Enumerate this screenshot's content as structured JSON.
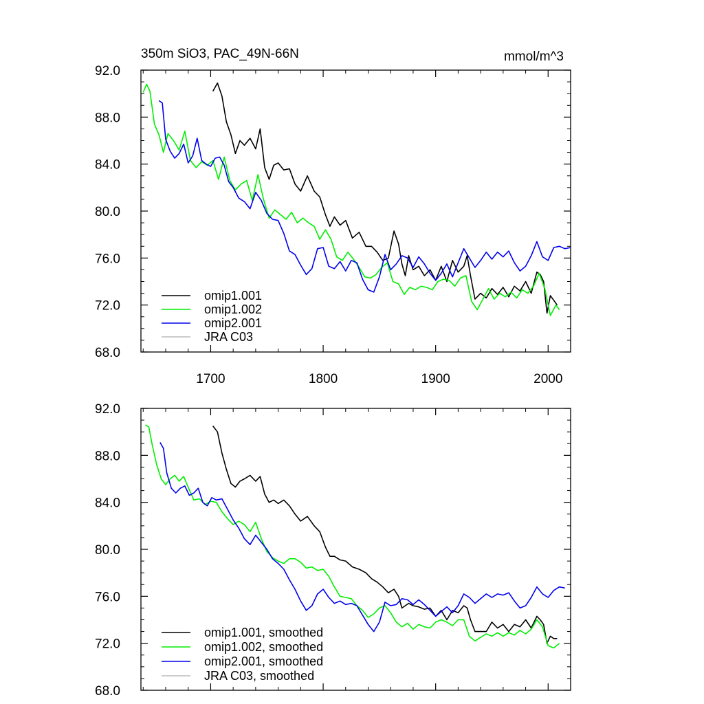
{
  "chart_data": [
    {
      "type": "line",
      "title": "350m SiO3, PAC_49N-66N",
      "units": "mmol/m^3",
      "xlim": [
        1638,
        2020
      ],
      "ylim": [
        68,
        92
      ],
      "xticks": [
        1700,
        1800,
        1900,
        2000
      ],
      "xtick_labels": [
        "1700",
        "1800",
        "1900",
        "2000"
      ],
      "yticks": [
        68,
        72,
        76,
        80,
        84,
        88,
        92
      ],
      "ytick_labels": [
        "68.0",
        "72.0",
        "76.0",
        "80.0",
        "84.0",
        "88.0",
        "92.0"
      ],
      "legend_position": "bottom-left",
      "series": [
        {
          "name": "omip1.001",
          "color": "#000000",
          "x": [
            1702,
            1706,
            1710,
            1714,
            1718,
            1722,
            1726,
            1730,
            1735,
            1740,
            1744,
            1748,
            1752,
            1756,
            1760,
            1765,
            1770,
            1775,
            1780,
            1786,
            1792,
            1797,
            1802,
            1806,
            1810,
            1815,
            1820,
            1826,
            1832,
            1838,
            1843,
            1848,
            1853,
            1858,
            1863,
            1867,
            1870,
            1873,
            1876,
            1880,
            1885,
            1890,
            1895,
            1900,
            1905,
            1910,
            1915,
            1920,
            1925,
            1928,
            1931,
            1935,
            1940,
            1945,
            1950,
            1955,
            1960,
            1965,
            1970,
            1975,
            1980,
            1985,
            1990,
            1993,
            1996,
            1999,
            2002,
            2005,
            2008
          ],
          "values": [
            90.2,
            90.9,
            89.8,
            87.6,
            86.5,
            84.9,
            86.0,
            85.6,
            86.2,
            85.3,
            87.0,
            83.7,
            82.7,
            83.9,
            84.1,
            83.5,
            83.6,
            82.3,
            81.7,
            83.0,
            81.7,
            81.2,
            79.7,
            78.7,
            79.5,
            78.8,
            79.2,
            77.7,
            78.2,
            77.0,
            77.0,
            76.5,
            75.8,
            76.0,
            78.3,
            77.2,
            75.5,
            74.5,
            76.2,
            75.0,
            75.3,
            74.5,
            75.0,
            74.1,
            75.3,
            74.0,
            75.8,
            74.8,
            75.3,
            76.2,
            74.5,
            72.5,
            73.0,
            72.6,
            73.4,
            72.9,
            73.5,
            72.7,
            73.6,
            73.2,
            74.0,
            73.0,
            74.8,
            74.6,
            74.0,
            71.3,
            72.8,
            72.4,
            72.0
          ]
        },
        {
          "name": "omip1.002",
          "color": "#00ee00",
          "x": [
            1640,
            1643,
            1646,
            1650,
            1654,
            1658,
            1662,
            1667,
            1672,
            1677,
            1682,
            1687,
            1692,
            1697,
            1702,
            1707,
            1712,
            1717,
            1722,
            1727,
            1732,
            1737,
            1742,
            1747,
            1752,
            1757,
            1762,
            1767,
            1772,
            1777,
            1782,
            1787,
            1792,
            1797,
            1802,
            1807,
            1812,
            1817,
            1822,
            1827,
            1832,
            1837,
            1842,
            1847,
            1852,
            1857,
            1862,
            1867,
            1872,
            1877,
            1882,
            1887,
            1892,
            1897,
            1902,
            1907,
            1912,
            1917,
            1922,
            1927,
            1932,
            1937,
            1942,
            1947,
            1952,
            1957,
            1962,
            1967,
            1972,
            1977,
            1982,
            1987,
            1992,
            1997,
            2002,
            2007,
            2010
          ],
          "values": [
            90.1,
            90.8,
            90.2,
            87.4,
            86.5,
            85.0,
            86.6,
            86.0,
            85.2,
            86.8,
            84.3,
            83.7,
            84.2,
            83.9,
            84.3,
            82.7,
            84.6,
            82.6,
            81.8,
            82.3,
            82.6,
            80.9,
            83.1,
            81.0,
            79.4,
            80.1,
            79.7,
            79.3,
            79.9,
            79.0,
            79.4,
            79.0,
            78.7,
            77.6,
            78.4,
            77.6,
            76.1,
            75.8,
            76.5,
            75.9,
            75.2,
            74.4,
            74.3,
            74.6,
            75.2,
            75.6,
            74.0,
            73.8,
            72.9,
            73.5,
            73.3,
            73.6,
            73.5,
            73.3,
            74.0,
            74.2,
            74.1,
            73.6,
            74.3,
            74.5,
            72.3,
            71.6,
            72.5,
            73.4,
            72.5,
            73.0,
            72.7,
            73.1,
            72.6,
            73.3,
            73.0,
            73.6,
            74.7,
            73.4,
            71.1,
            72.0,
            71.6
          ]
        },
        {
          "name": "omip2.001",
          "color": "#0000ee",
          "x": [
            1654,
            1657,
            1660,
            1664,
            1668,
            1672,
            1676,
            1680,
            1684,
            1688,
            1692,
            1696,
            1700,
            1704,
            1708,
            1712,
            1716,
            1720,
            1725,
            1730,
            1735,
            1740,
            1745,
            1750,
            1755,
            1760,
            1765,
            1770,
            1775,
            1780,
            1785,
            1790,
            1795,
            1800,
            1805,
            1810,
            1815,
            1820,
            1825,
            1830,
            1835,
            1840,
            1845,
            1850,
            1855,
            1860,
            1865,
            1870,
            1875,
            1880,
            1885,
            1890,
            1895,
            1900,
            1905,
            1910,
            1915,
            1920,
            1925,
            1930,
            1935,
            1940,
            1945,
            1950,
            1955,
            1960,
            1965,
            1970,
            1975,
            1980,
            1985,
            1990,
            1995,
            2000,
            2005,
            2010,
            2015,
            2020
          ],
          "values": [
            89.4,
            89.2,
            86.1,
            85.1,
            84.5,
            84.9,
            85.7,
            84.1,
            84.7,
            86.2,
            84.3,
            84.0,
            83.8,
            84.5,
            84.6,
            83.9,
            82.5,
            82.0,
            81.1,
            80.8,
            80.2,
            81.6,
            80.9,
            79.8,
            79.3,
            79.2,
            78.1,
            76.6,
            76.3,
            75.4,
            74.6,
            75.1,
            76.8,
            76.9,
            75.3,
            75.1,
            75.7,
            74.9,
            75.8,
            75.6,
            74.2,
            73.3,
            73.1,
            74.4,
            76.3,
            75.0,
            75.5,
            76.2,
            76.0,
            75.2,
            76.1,
            75.5,
            74.7,
            74.1,
            74.7,
            75.5,
            74.4,
            75.6,
            76.8,
            76.0,
            75.2,
            75.8,
            76.5,
            75.9,
            76.5,
            76.1,
            76.6,
            75.6,
            74.9,
            75.3,
            76.2,
            77.4,
            76.1,
            75.8,
            76.9,
            77.0,
            76.8,
            76.9
          ]
        },
        {
          "name": "JRA C03",
          "color": "#bbbbbb",
          "x": [],
          "values": []
        }
      ]
    },
    {
      "type": "line",
      "title": "",
      "units": "",
      "xlim": [
        1638,
        2020
      ],
      "ylim": [
        68,
        92
      ],
      "xticks": [
        1700,
        1800,
        1900,
        2000
      ],
      "xtick_labels": [],
      "yticks": [
        68,
        72,
        76,
        80,
        84,
        88,
        92
      ],
      "ytick_labels": [
        "68.0",
        "72.0",
        "76.0",
        "80.0",
        "84.0",
        "88.0",
        "92.0"
      ],
      "legend_position": "bottom-left",
      "series": [
        {
          "name": "omip1.001, smoothed",
          "color": "#000000",
          "x": [
            1702,
            1706,
            1710,
            1714,
            1718,
            1722,
            1726,
            1730,
            1735,
            1740,
            1744,
            1748,
            1752,
            1756,
            1760,
            1765,
            1770,
            1775,
            1780,
            1786,
            1792,
            1797,
            1802,
            1806,
            1810,
            1815,
            1820,
            1826,
            1832,
            1838,
            1843,
            1848,
            1853,
            1858,
            1863,
            1867,
            1870,
            1873,
            1876,
            1880,
            1885,
            1890,
            1895,
            1900,
            1905,
            1910,
            1915,
            1920,
            1925,
            1928,
            1931,
            1935,
            1940,
            1945,
            1950,
            1955,
            1960,
            1965,
            1970,
            1975,
            1980,
            1985,
            1990,
            1993,
            1996,
            1999,
            2002,
            2005,
            2008
          ],
          "values": [
            90.5,
            90.0,
            88.2,
            86.8,
            85.6,
            85.3,
            85.8,
            86.0,
            86.3,
            85.8,
            86.2,
            84.7,
            84.0,
            84.2,
            83.9,
            84.2,
            83.7,
            83.0,
            82.4,
            82.8,
            82.0,
            81.5,
            80.2,
            79.4,
            79.4,
            79.1,
            79.0,
            78.5,
            78.3,
            78.0,
            77.5,
            77.2,
            76.8,
            76.3,
            76.6,
            76.0,
            75.0,
            75.2,
            75.4,
            75.2,
            75.1,
            74.9,
            75.0,
            74.3,
            74.8,
            74.0,
            74.8,
            74.6,
            75.2,
            75.0,
            74.0,
            73.0,
            73.0,
            73.0,
            73.8,
            73.3,
            73.6,
            73.0,
            73.6,
            73.4,
            74.0,
            73.3,
            74.3,
            74.0,
            73.6,
            72.0,
            72.6,
            72.4,
            72.4
          ]
        },
        {
          "name": "omip1.002, smoothed",
          "color": "#00ee00",
          "x": [
            1642,
            1645,
            1648,
            1652,
            1656,
            1660,
            1664,
            1668,
            1672,
            1676,
            1680,
            1685,
            1690,
            1695,
            1700,
            1705,
            1710,
            1715,
            1720,
            1725,
            1730,
            1735,
            1740,
            1745,
            1750,
            1755,
            1760,
            1765,
            1770,
            1775,
            1780,
            1785,
            1790,
            1795,
            1800,
            1805,
            1810,
            1815,
            1820,
            1825,
            1830,
            1835,
            1840,
            1845,
            1850,
            1855,
            1860,
            1865,
            1870,
            1875,
            1880,
            1885,
            1890,
            1895,
            1900,
            1905,
            1910,
            1915,
            1920,
            1925,
            1930,
            1935,
            1940,
            1945,
            1950,
            1955,
            1960,
            1965,
            1970,
            1975,
            1980,
            1985,
            1990,
            1995,
            2000,
            2005,
            2010
          ],
          "values": [
            90.6,
            90.4,
            88.9,
            87.2,
            86.0,
            85.5,
            86.0,
            86.3,
            85.8,
            86.2,
            85.3,
            84.2,
            84.3,
            83.8,
            84.1,
            84.0,
            83.2,
            82.6,
            82.1,
            82.4,
            82.1,
            81.5,
            82.3,
            80.9,
            79.8,
            79.3,
            79.0,
            78.8,
            79.2,
            79.2,
            78.9,
            78.4,
            78.5,
            78.2,
            78.3,
            77.7,
            76.8,
            76.0,
            75.9,
            75.8,
            75.2,
            74.8,
            74.2,
            74.5,
            75.0,
            75.2,
            74.6,
            73.8,
            73.4,
            73.7,
            73.2,
            73.6,
            73.4,
            73.3,
            73.8,
            74.0,
            73.8,
            73.5,
            74.0,
            74.0,
            72.6,
            72.2,
            72.5,
            72.8,
            72.6,
            72.9,
            72.6,
            72.9,
            72.7,
            73.1,
            72.8,
            73.2,
            74.0,
            73.4,
            71.8,
            71.6,
            72.0
          ]
        },
        {
          "name": "omip2.001, smoothed",
          "color": "#0000ee",
          "x": [
            1655,
            1658,
            1661,
            1665,
            1669,
            1673,
            1677,
            1681,
            1685,
            1689,
            1693,
            1697,
            1701,
            1705,
            1710,
            1715,
            1720,
            1725,
            1730,
            1735,
            1740,
            1745,
            1750,
            1755,
            1760,
            1765,
            1770,
            1775,
            1780,
            1785,
            1790,
            1795,
            1800,
            1805,
            1810,
            1815,
            1820,
            1825,
            1830,
            1835,
            1840,
            1845,
            1850,
            1855,
            1860,
            1865,
            1870,
            1875,
            1880,
            1885,
            1890,
            1895,
            1900,
            1905,
            1910,
            1915,
            1920,
            1925,
            1930,
            1935,
            1940,
            1945,
            1950,
            1955,
            1960,
            1965,
            1970,
            1975,
            1980,
            1985,
            1990,
            1995,
            2000,
            2005,
            2010,
            2015
          ],
          "values": [
            89.1,
            88.6,
            86.5,
            85.2,
            84.8,
            85.2,
            85.4,
            84.6,
            84.8,
            85.2,
            84.0,
            83.7,
            84.4,
            84.2,
            84.3,
            83.4,
            82.5,
            81.8,
            80.9,
            80.4,
            81.2,
            80.6,
            80.0,
            79.2,
            78.8,
            78.3,
            77.4,
            76.6,
            75.6,
            74.8,
            75.2,
            76.2,
            76.6,
            75.9,
            75.4,
            75.6,
            75.3,
            75.4,
            75.2,
            74.4,
            73.6,
            73.0,
            73.8,
            75.5,
            75.2,
            75.3,
            75.8,
            75.7,
            75.3,
            75.7,
            75.3,
            74.8,
            74.3,
            74.7,
            75.1,
            74.6,
            75.2,
            76.2,
            75.9,
            75.4,
            75.8,
            76.2,
            75.9,
            76.2,
            76.1,
            76.3,
            75.6,
            75.0,
            75.2,
            75.9,
            76.8,
            76.2,
            75.9,
            76.5,
            76.8,
            76.7
          ]
        },
        {
          "name": "JRA C03, smoothed",
          "color": "#bbbbbb",
          "x": [],
          "values": []
        }
      ]
    }
  ]
}
